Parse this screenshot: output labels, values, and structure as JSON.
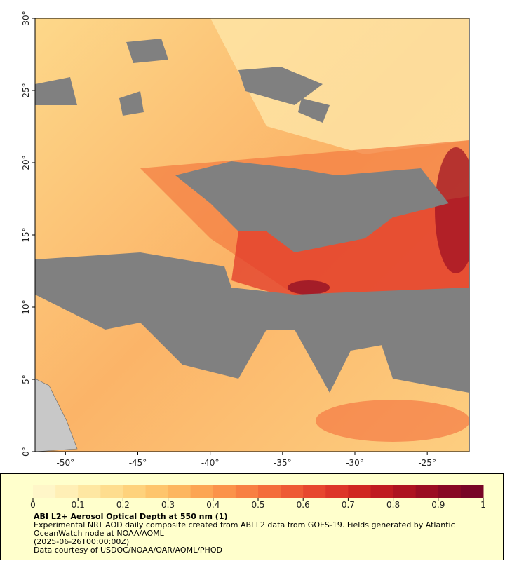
{
  "map": {
    "xlim": [
      -52.1,
      -22.1
    ],
    "ylim": [
      0,
      30
    ],
    "xticks": [
      {
        "value": -50,
        "label": "-50°"
      },
      {
        "value": -45,
        "label": "-45°"
      },
      {
        "value": -40,
        "label": "-40°"
      },
      {
        "value": -35,
        "label": "-35°"
      },
      {
        "value": -30,
        "label": "-30°"
      },
      {
        "value": -25,
        "label": "-25°"
      }
    ],
    "yticks": [
      {
        "value": 0,
        "label": "0°"
      },
      {
        "value": 5,
        "label": "5°"
      },
      {
        "value": 10,
        "label": "10°"
      },
      {
        "value": 15,
        "label": "15°"
      },
      {
        "value": 20,
        "label": "20°"
      },
      {
        "value": 25,
        "label": "25°"
      },
      {
        "value": 30,
        "label": "30°"
      }
    ]
  },
  "colorbar": {
    "lim": [
      0,
      1
    ],
    "ticks": [
      0,
      0.1,
      0.2,
      0.3,
      0.4,
      0.5,
      0.6,
      0.7,
      0.8,
      0.9,
      1
    ],
    "colors": [
      "#fff6c8",
      "#ffefb6",
      "#fee7a2",
      "#fedd8e",
      "#fed27c",
      "#fec56c",
      "#fdb65f",
      "#fca553",
      "#fb934a",
      "#f88042",
      "#f46d3b",
      "#ee5a34",
      "#e7472e",
      "#dd3628",
      "#d02722",
      "#c01b20",
      "#ae1320",
      "#9b0d22",
      "#880824",
      "#780526"
    ]
  },
  "footer": {
    "title": "ABI L2+ Aerosol Optical Depth at 550 nm (1)",
    "description": "Experimental NRT AOD daily composite created from ABI L2 data from GOES-19. Fields generated by Atlantic OceanWatch node at NOAA/AOML",
    "timestamp": "(2025-06-26T00:00:00Z)",
    "credit": "Data courtesy of USDOC/NOAA/OAR/AOML/PHOD"
  }
}
